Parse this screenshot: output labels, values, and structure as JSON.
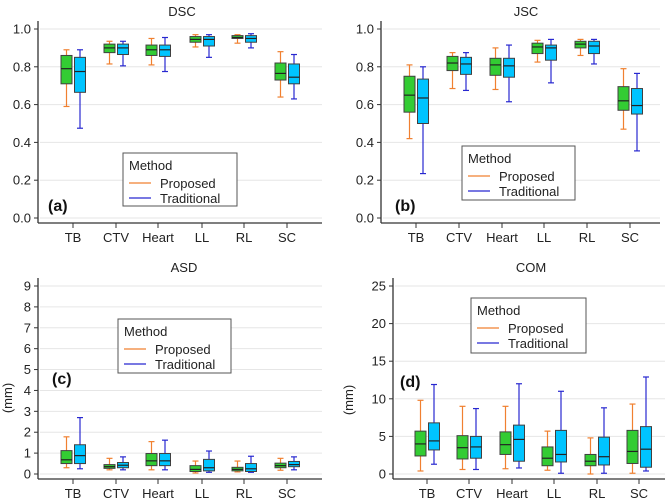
{
  "colors": {
    "proposed_box": "#33cc33",
    "traditional_box": "#00c4ff",
    "proposed_whisker": "#f08030",
    "traditional_whisker": "#2828d0",
    "box_edge": "#404040",
    "grid": "#e6e6e6"
  },
  "chart_data": [
    {
      "type": "box",
      "panel_label": "(a)",
      "title": "DSC",
      "ylabel": "",
      "ylim": [
        0,
        1.0
      ],
      "yticks": [
        "0.0",
        "0.2",
        "0.4",
        "0.6",
        "0.8",
        "1.0"
      ],
      "ytick_values": [
        0,
        0.2,
        0.4,
        0.6,
        0.8,
        1.0
      ],
      "categories": [
        "TB",
        "CTV",
        "Heart",
        "LL",
        "RL",
        "SC"
      ],
      "grid": true,
      "legend": {
        "title": "Method",
        "entries": [
          "Proposed",
          "Traditional"
        ]
      },
      "series": [
        {
          "name": "Proposed",
          "stats_order": "min,q1,median,q3,max",
          "values": [
            [
              0.59,
              0.71,
              0.79,
              0.86,
              0.89
            ],
            [
              0.815,
              0.875,
              0.9,
              0.92,
              0.935
            ],
            [
              0.81,
              0.86,
              0.89,
              0.915,
              0.95
            ],
            [
              0.905,
              0.93,
              0.945,
              0.96,
              0.97
            ],
            [
              0.925,
              0.95,
              0.955,
              0.965,
              0.97
            ],
            [
              0.64,
              0.73,
              0.765,
              0.82,
              0.88
            ]
          ]
        },
        {
          "name": "Traditional",
          "stats_order": "min,q1,median,q3,max",
          "values": [
            [
              0.475,
              0.665,
              0.775,
              0.85,
              0.89
            ],
            [
              0.805,
              0.865,
              0.9,
              0.92,
              0.935
            ],
            [
              0.775,
              0.855,
              0.89,
              0.915,
              0.955
            ],
            [
              0.85,
              0.91,
              0.945,
              0.96,
              0.97
            ],
            [
              0.9,
              0.93,
              0.95,
              0.965,
              0.975
            ],
            [
              0.63,
              0.71,
              0.745,
              0.815,
              0.865
            ]
          ]
        }
      ]
    },
    {
      "type": "box",
      "panel_label": "(b)",
      "title": "JSC",
      "ylabel": "",
      "ylim": [
        0,
        1.0
      ],
      "yticks": [
        "0.0",
        "0.2",
        "0.4",
        "0.6",
        "0.8",
        "1.0"
      ],
      "ytick_values": [
        0,
        0.2,
        0.4,
        0.6,
        0.8,
        1.0
      ],
      "categories": [
        "TB",
        "CTV",
        "Heart",
        "LL",
        "RL",
        "SC"
      ],
      "grid": true,
      "legend": {
        "title": "Method",
        "entries": [
          "Proposed",
          "Traditional"
        ]
      },
      "series": [
        {
          "name": "Proposed",
          "stats_order": "min,q1,median,q3,max",
          "values": [
            [
              0.42,
              0.56,
              0.65,
              0.75,
              0.81
            ],
            [
              0.685,
              0.78,
              0.82,
              0.855,
              0.875
            ],
            [
              0.68,
              0.755,
              0.81,
              0.845,
              0.9
            ],
            [
              0.825,
              0.87,
              0.905,
              0.925,
              0.94
            ],
            [
              0.86,
              0.9,
              0.92,
              0.935,
              0.945
            ],
            [
              0.47,
              0.57,
              0.62,
              0.695,
              0.79
            ]
          ]
        },
        {
          "name": "Traditional",
          "stats_order": "min,q1,median,q3,max",
          "values": [
            [
              0.235,
              0.5,
              0.635,
              0.735,
              0.8
            ],
            [
              0.675,
              0.76,
              0.815,
              0.85,
              0.875
            ],
            [
              0.615,
              0.745,
              0.805,
              0.845,
              0.915
            ],
            [
              0.715,
              0.835,
              0.9,
              0.915,
              0.945
            ],
            [
              0.815,
              0.87,
              0.91,
              0.935,
              0.945
            ],
            [
              0.355,
              0.55,
              0.595,
              0.685,
              0.765
            ]
          ]
        }
      ]
    },
    {
      "type": "box",
      "panel_label": "(c)",
      "title": "ASD",
      "ylabel": "(mm)",
      "ylim": [
        0,
        9
      ],
      "yticks": [
        "0",
        "1",
        "2",
        "3",
        "4",
        "5",
        "6",
        "7",
        "8",
        "9"
      ],
      "ytick_values": [
        0,
        1,
        2,
        3,
        4,
        5,
        6,
        7,
        8,
        9
      ],
      "categories": [
        "TB",
        "CTV",
        "Heart",
        "LL",
        "RL",
        "SC"
      ],
      "grid": true,
      "legend": {
        "title": "Method",
        "entries": [
          "Proposed",
          "Traditional"
        ]
      },
      "series": [
        {
          "name": "Proposed",
          "stats_order": "min,q1,median,q3,max",
          "values": [
            [
              0.3,
              0.5,
              0.68,
              1.12,
              1.78
            ],
            [
              0.2,
              0.27,
              0.35,
              0.45,
              0.75
            ],
            [
              0.2,
              0.4,
              0.63,
              0.98,
              1.55
            ],
            [
              0.05,
              0.12,
              0.22,
              0.4,
              0.62
            ],
            [
              0.1,
              0.15,
              0.22,
              0.32,
              0.62
            ],
            [
              0.18,
              0.3,
              0.4,
              0.52,
              0.75
            ]
          ]
        },
        {
          "name": "Traditional",
          "stats_order": "min,q1,median,q3,max",
          "values": [
            [
              0.25,
              0.5,
              0.88,
              1.4,
              2.7
            ],
            [
              0.2,
              0.3,
              0.42,
              0.55,
              0.82
            ],
            [
              0.2,
              0.4,
              0.63,
              0.98,
              1.62
            ],
            [
              0.08,
              0.15,
              0.3,
              0.7,
              1.1
            ],
            [
              0.08,
              0.12,
              0.25,
              0.5,
              0.85
            ],
            [
              0.2,
              0.35,
              0.45,
              0.6,
              0.82
            ]
          ]
        }
      ]
    },
    {
      "type": "box",
      "panel_label": "(d)",
      "title": "COM",
      "ylabel": "(mm)",
      "ylim": [
        0,
        25
      ],
      "yticks": [
        "0",
        "5",
        "10",
        "15",
        "20",
        "25"
      ],
      "ytick_values": [
        0,
        5,
        10,
        15,
        20,
        25
      ],
      "categories": [
        "TB",
        "CTV",
        "Heart",
        "LL",
        "RL",
        "SC"
      ],
      "grid": true,
      "legend": {
        "title": "Method",
        "entries": [
          "Proposed",
          "Traditional"
        ]
      },
      "series": [
        {
          "name": "Proposed",
          "stats_order": "min,q1,median,q3,max",
          "values": [
            [
              0.4,
              2.4,
              4.0,
              5.7,
              9.8
            ],
            [
              0.6,
              2.0,
              3.5,
              5.1,
              9.0
            ],
            [
              0.7,
              2.6,
              3.9,
              5.6,
              9.0
            ],
            [
              0.5,
              1.1,
              2.1,
              3.6,
              5.7
            ],
            [
              0.0,
              1.1,
              1.7,
              2.6,
              4.8
            ],
            [
              0.1,
              1.4,
              3.0,
              5.8,
              9.3
            ]
          ]
        },
        {
          "name": "Traditional",
          "stats_order": "min,q1,median,q3,max",
          "values": [
            [
              1.3,
              3.2,
              4.4,
              6.8,
              11.9
            ],
            [
              0.6,
              2.1,
              3.6,
              5.0,
              8.7
            ],
            [
              0.8,
              1.7,
              4.6,
              6.5,
              12.0
            ],
            [
              0.1,
              1.6,
              2.6,
              5.8,
              11.0
            ],
            [
              0.1,
              1.2,
              2.3,
              4.9,
              8.8
            ],
            [
              0.4,
              0.9,
              3.3,
              6.3,
              12.9
            ]
          ]
        }
      ]
    }
  ]
}
